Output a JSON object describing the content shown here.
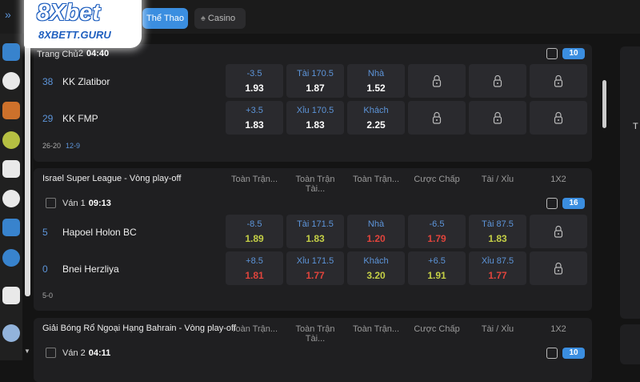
{
  "header": {
    "logo": "8Xbet",
    "logo_domain": "8XBETT.GURU",
    "tabs": [
      {
        "label": "Thể Thao",
        "active": true
      },
      {
        "label": "Casino",
        "active": false
      }
    ]
  },
  "breadcrumb": "Trang Chủ",
  "right_panel": "T",
  "leagues": [
    {
      "round": "2",
      "time": "04:40",
      "count": "10",
      "teams": [
        {
          "score": "38",
          "name": "KK Zlatibor",
          "odds": [
            {
              "label": "-3.5",
              "value": "1.93"
            },
            {
              "label": "Tài 170.5",
              "value": "1.87"
            },
            {
              "label": "Nhà",
              "value": "1.52"
            },
            null,
            null,
            null
          ]
        },
        {
          "score": "29",
          "name": "KK FMP",
          "odds": [
            {
              "label": "+3.5",
              "value": "1.83"
            },
            {
              "label": "Xỉu 170.5",
              "value": "1.83"
            },
            {
              "label": "Khách",
              "value": "2.25"
            },
            null,
            null,
            null
          ]
        }
      ],
      "footer": [
        "26-20",
        "12-9"
      ]
    },
    {
      "title": "Israel Super League - Vòng play-off",
      "columns": [
        "Toàn Trận...",
        "Toàn Trận Tài...",
        "Toàn Trận...",
        "Cược Chấp",
        "Tài / Xỉu",
        "1X2"
      ],
      "round": "Ván 1",
      "time": "09:13",
      "count": "16",
      "teams": [
        {
          "score": "5",
          "name": "Hapoel Holon BC",
          "odds": [
            {
              "label": "-8.5",
              "value": "1.89",
              "color": "#c5d046"
            },
            {
              "label": "Tài 171.5",
              "value": "1.83",
              "color": "#c5d046"
            },
            {
              "label": "Nhà",
              "value": "1.20",
              "color": "#e0443c"
            },
            {
              "label": "-6.5",
              "value": "1.79",
              "color": "#e0443c"
            },
            {
              "label": "Tài 87.5",
              "value": "1.83",
              "color": "#c5d046"
            },
            null
          ]
        },
        {
          "score": "0",
          "name": "Bnei Herzliya",
          "odds": [
            {
              "label": "+8.5",
              "value": "1.81",
              "color": "#e0443c"
            },
            {
              "label": "Xỉu 171.5",
              "value": "1.77",
              "color": "#e0443c"
            },
            {
              "label": "Khách",
              "value": "3.20",
              "color": "#c5d046"
            },
            {
              "label": "+6.5",
              "value": "1.91",
              "color": "#c5d046"
            },
            {
              "label": "Xỉu 87.5",
              "value": "1.77",
              "color": "#e0443c"
            },
            null
          ]
        }
      ],
      "footer": [
        "5-0"
      ]
    },
    {
      "title": "Giải Bóng Rổ Ngoại Hạng Bahrain - Vòng play-off",
      "columns": [
        "Toàn Trận...",
        "Toàn Trận Tài...",
        "Toàn Trận...",
        "Cược Chấp",
        "Tài / Xỉu",
        "1X2"
      ],
      "round": "Ván 2",
      "time": "04:11",
      "count": "10",
      "teams": [],
      "footer": []
    }
  ]
}
